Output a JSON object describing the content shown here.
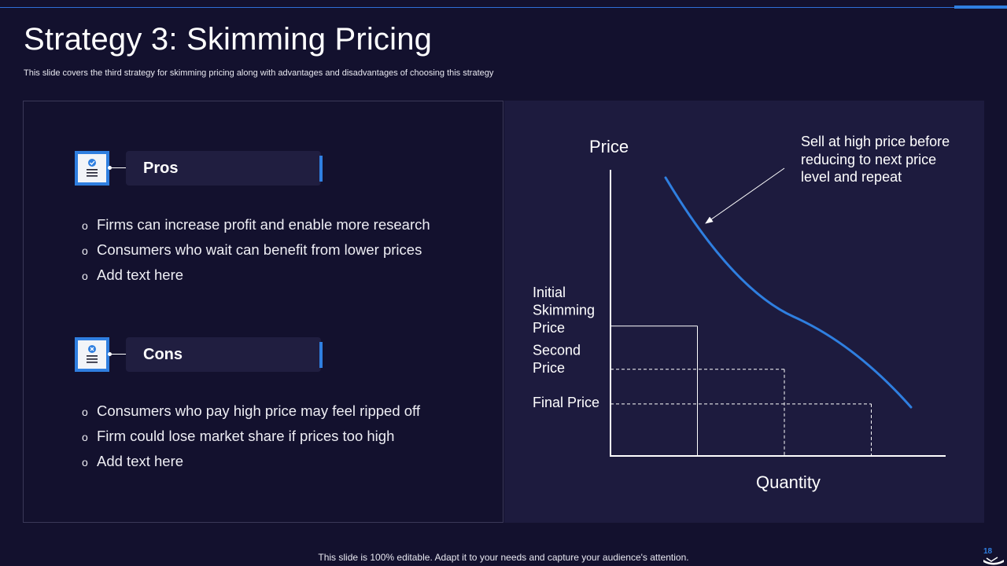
{
  "slide": {
    "title": "Strategy 3: Skimming Pricing",
    "subtitle": "This slide covers the third strategy for  skimming pricing along with advantages and disadvantages of choosing this strategy",
    "footer": "This slide is 100% editable. Adapt it to your needs and capture your audience's attention.",
    "page_number": "18"
  },
  "pros": {
    "label": "Pros",
    "icon": "document-check-icon",
    "items": [
      "Firms can increase profit and enable more research",
      "Consumers who wait can benefit from lower prices",
      "Add text here"
    ]
  },
  "cons": {
    "label": "Cons",
    "icon": "document-x-icon",
    "items": [
      "Consumers who pay high price may feel ripped off",
      "Firm could lose market share if prices too high",
      "Add text here"
    ]
  },
  "bullet_marker": "o",
  "colors": {
    "background": "#13112e",
    "panel": "#1d1b3e",
    "accent": "#2f7fe0",
    "text": "#ffffff"
  },
  "chart_data": {
    "type": "line",
    "xlabel": "Quantity",
    "ylabel": "Price",
    "annotation": [
      "Sell at high price before",
      "reducing to next price",
      "level and repeat"
    ],
    "price_levels": [
      {
        "label_lines": [
          "Initial",
          "Skimming",
          "Price"
        ],
        "price": 3,
        "quantity": 1
      },
      {
        "label_lines": [
          "Second",
          "Price"
        ],
        "price": 2,
        "quantity": 2
      },
      {
        "label_lines": [
          "Final Price"
        ],
        "price": 1.2,
        "quantity": 3
      }
    ],
    "xlim": [
      0,
      4
    ],
    "ylim": [
      0,
      4
    ]
  }
}
